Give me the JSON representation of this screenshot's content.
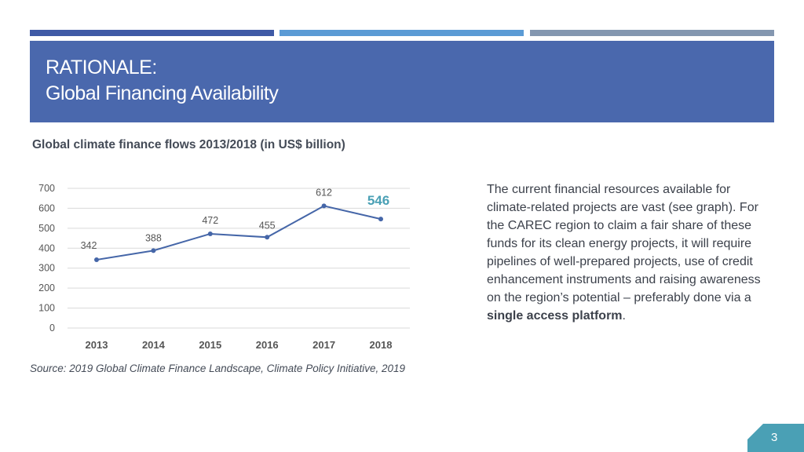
{
  "header": {
    "line1": "RATIONALE:",
    "line2": "Global Financing Availability"
  },
  "colors": {
    "accent": "#4a68ad",
    "line": "#4566a8",
    "highlight": "#4aa0b5",
    "page_badge": "#4aa0b5"
  },
  "chart_data": {
    "type": "line",
    "title": "Global climate finance flows 2013/2018 (in US$ billion)",
    "categories": [
      "2013",
      "2014",
      "2015",
      "2016",
      "2017",
      "2018"
    ],
    "series": [
      {
        "values": [
          342,
          388,
          472,
          455,
          612,
          546
        ]
      }
    ],
    "ylim": [
      0,
      700
    ],
    "yticks": [
      0,
      100,
      200,
      300,
      400,
      500,
      600,
      700
    ],
    "grid": true,
    "highlight_last": true
  },
  "source": "Source: 2019 Global Climate Finance Landscape, Climate Policy Initiative, 2019",
  "body": {
    "text": "The current financial resources available for climate-related projects are vast (see graph). For the CAREC region to claim a fair share of these funds for its clean energy projects, it will require pipelines of well-prepared projects, use of credit enhancement instruments and raising awareness on the region’s potential – preferably done via a ",
    "emphasis": "single access platform",
    "end": "."
  },
  "page_number": "3"
}
